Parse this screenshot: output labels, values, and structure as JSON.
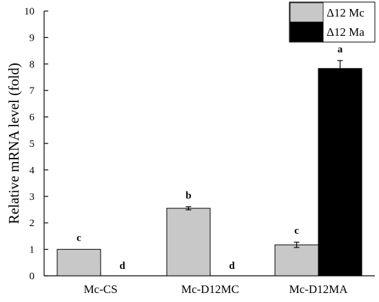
{
  "chart_data": {
    "type": "bar",
    "title": "",
    "xlabel": "",
    "ylabel": "Relative mRNA level (fold)",
    "ylim": [
      0,
      10
    ],
    "yticks": [
      0,
      1,
      2,
      3,
      4,
      5,
      6,
      7,
      8,
      9,
      10
    ],
    "categories": [
      "Mc-CS",
      "Mc-D12MC",
      "Mc-D12MA"
    ],
    "series": [
      {
        "name": "Δ12 Mc",
        "color": "#c8c8c8",
        "values": [
          1.0,
          2.55,
          1.17
        ],
        "errors": [
          0,
          0.06,
          0.1
        ],
        "significance": [
          "c",
          "b",
          "c"
        ]
      },
      {
        "name": "Δ12 Ma",
        "color": "#000000",
        "values": [
          0,
          0,
          7.83
        ],
        "errors": [
          0,
          0,
          0.3
        ],
        "significance": [
          "d",
          "d",
          "a"
        ]
      }
    ],
    "legend_position": "top-right",
    "grid": false
  }
}
